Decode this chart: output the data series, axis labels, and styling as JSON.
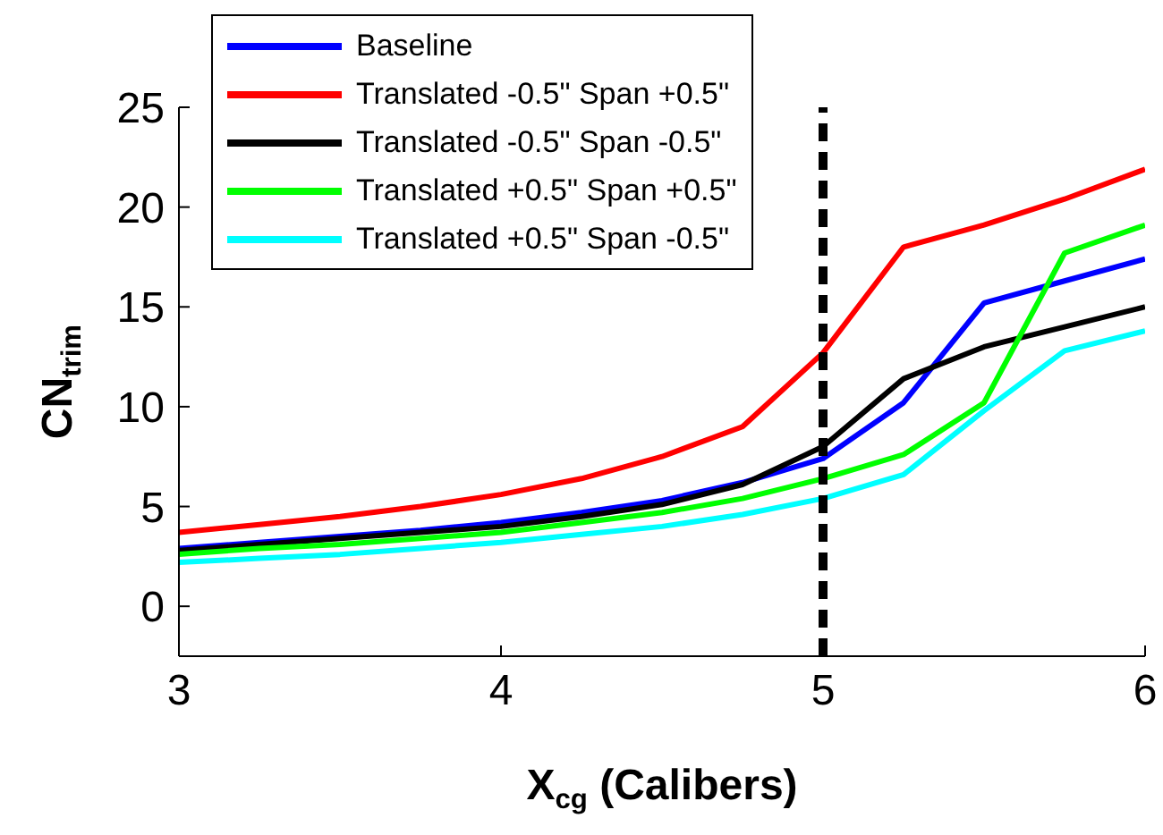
{
  "chart_data": {
    "type": "line",
    "xlabel": "X$_{cg}$ (Calibers)",
    "ylabel": "CN$_{trim}$",
    "x": [
      3,
      3.25,
      3.5,
      3.75,
      4,
      4.25,
      4.5,
      4.75,
      5,
      5.25,
      5.5,
      5.75,
      6
    ],
    "series": [
      {
        "name": "Baseline",
        "color": "#0000ff",
        "values": [
          2.9,
          3.2,
          3.5,
          3.8,
          4.2,
          4.7,
          5.3,
          6.2,
          7.4,
          10.2,
          15.2,
          16.3,
          17.4
        ]
      },
      {
        "name": "Translated -0.5\" Span +0.5\"",
        "color": "#ff0000",
        "values": [
          3.7,
          4.1,
          4.5,
          5.0,
          5.6,
          6.4,
          7.5,
          9.0,
          12.7,
          18.0,
          19.1,
          20.4,
          21.9
        ]
      },
      {
        "name": "Translated -0.5\" Span -0.5\"",
        "color": "#000000",
        "values": [
          2.8,
          3.1,
          3.4,
          3.7,
          4.0,
          4.5,
          5.1,
          6.1,
          8.0,
          11.4,
          13.0,
          14.0,
          15.0
        ]
      },
      {
        "name": "Translated +0.5\" Span +0.5\"",
        "color": "#00ff00",
        "values": [
          2.6,
          2.9,
          3.1,
          3.4,
          3.7,
          4.2,
          4.7,
          5.4,
          6.4,
          7.6,
          10.2,
          17.7,
          19.1
        ]
      },
      {
        "name": "Translated +0.5\" Span -0.5\"",
        "color": "#00ffff",
        "values": [
          2.2,
          2.4,
          2.6,
          2.9,
          3.2,
          3.6,
          4.0,
          4.6,
          5.4,
          6.6,
          9.8,
          12.8,
          13.8
        ]
      }
    ],
    "xlim": [
      3,
      6
    ],
    "xticks": [
      3,
      4,
      5,
      6
    ],
    "ylim": [
      -2.5,
      25
    ],
    "yticks": [
      0,
      5,
      10,
      15,
      20,
      25
    ],
    "ref_lines": [
      {
        "axis": "x",
        "value": 5,
        "color": "#000000",
        "line_style": "dashed"
      }
    ],
    "grid": false,
    "legend": "top left",
    "marker": "none",
    "line_style": "solid"
  }
}
